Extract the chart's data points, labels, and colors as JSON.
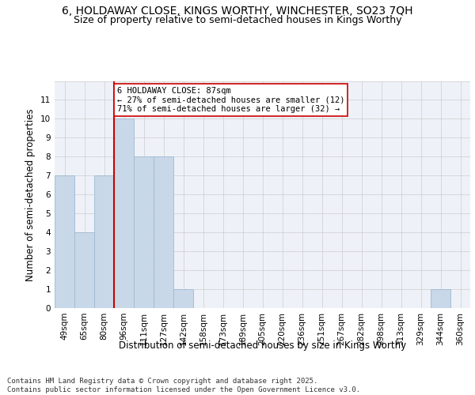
{
  "title": "6, HOLDAWAY CLOSE, KINGS WORTHY, WINCHESTER, SO23 7QH",
  "subtitle": "Size of property relative to semi-detached houses in Kings Worthy",
  "xlabel": "Distribution of semi-detached houses by size in Kings Worthy",
  "ylabel": "Number of semi-detached properties",
  "categories": [
    "49sqm",
    "65sqm",
    "80sqm",
    "96sqm",
    "111sqm",
    "127sqm",
    "142sqm",
    "158sqm",
    "173sqm",
    "189sqm",
    "205sqm",
    "220sqm",
    "236sqm",
    "251sqm",
    "267sqm",
    "282sqm",
    "298sqm",
    "313sqm",
    "329sqm",
    "344sqm",
    "360sqm"
  ],
  "values": [
    7,
    4,
    7,
    10,
    8,
    8,
    1,
    0,
    0,
    0,
    0,
    0,
    0,
    0,
    0,
    0,
    0,
    0,
    0,
    1,
    0
  ],
  "bar_color": "#c8d8e8",
  "bar_edge_color": "#a0b8d0",
  "red_line_color": "#cc0000",
  "red_line_index": 2.5,
  "annotation_text": "6 HOLDAWAY CLOSE: 87sqm\n← 27% of semi-detached houses are smaller (12)\n71% of semi-detached houses are larger (32) →",
  "annotation_box_color": "#ffffff",
  "annotation_box_edge_color": "#cc0000",
  "ylim": [
    0,
    12
  ],
  "yticks": [
    0,
    1,
    2,
    3,
    4,
    5,
    6,
    7,
    8,
    9,
    10,
    11,
    12
  ],
  "grid_color": "#cccccc",
  "bg_color": "#eef2f8",
  "footer_line1": "Contains HM Land Registry data © Crown copyright and database right 2025.",
  "footer_line2": "Contains public sector information licensed under the Open Government Licence v3.0.",
  "title_fontsize": 10,
  "subtitle_fontsize": 9,
  "annotation_fontsize": 7.5,
  "footer_fontsize": 6.5,
  "axis_label_fontsize": 8.5,
  "tick_fontsize": 7.5
}
